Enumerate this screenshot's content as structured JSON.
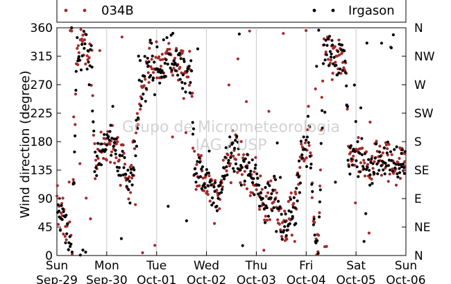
{
  "chart_data": {
    "type": "scatter",
    "title": "",
    "ylabel": "Wind direction (degree)",
    "xlabel": "",
    "ylim": [
      0,
      360
    ],
    "xlim": [
      "2013-09-29 00:00",
      "2013-10-06 00:00"
    ],
    "yticks": [
      0,
      45,
      90,
      135,
      180,
      225,
      270,
      315,
      360
    ],
    "compass_ticks": [
      "N",
      "NE",
      "E",
      "SE",
      "S",
      "SW",
      "W",
      "NW",
      "N"
    ],
    "x_ticks": [
      {
        "day": "Sun",
        "date": "Sep-29"
      },
      {
        "day": "Mon",
        "date": "Sep-30"
      },
      {
        "day": "Tue",
        "date": "Oct-01"
      },
      {
        "day": "Wed",
        "date": "Oct-02"
      },
      {
        "day": "Thu",
        "date": "Oct-03"
      },
      {
        "day": "Fri",
        "date": "Oct-04"
      },
      {
        "day": "Sat",
        "date": "Oct-05"
      },
      {
        "day": "Sun",
        "date": "Oct-06"
      }
    ],
    "grid": "vertical",
    "legend_position": "top",
    "watermark": [
      "Grupo de Micrometeorologia",
      "IAG / USP"
    ],
    "series": [
      {
        "name": "034B",
        "color": "#a52a2a"
      },
      {
        "name": "Irgason",
        "color": "#000000"
      }
    ],
    "trend_day_fraction_vs_degree": [
      [
        0.0,
        75
      ],
      [
        0.1,
        70
      ],
      [
        0.2,
        30
      ],
      [
        0.3,
        5
      ],
      [
        0.4,
        325
      ],
      [
        0.55,
        335
      ],
      [
        0.7,
        300
      ],
      [
        0.75,
        150
      ],
      [
        0.9,
        165
      ],
      [
        1.1,
        185
      ],
      [
        1.2,
        160
      ],
      [
        1.35,
        140
      ],
      [
        1.45,
        100
      ],
      [
        1.5,
        140
      ],
      [
        1.55,
        160
      ],
      [
        1.65,
        250
      ],
      [
        1.8,
        290
      ],
      [
        1.95,
        310
      ],
      [
        2.05,
        290
      ],
      [
        2.2,
        320
      ],
      [
        2.4,
        305
      ],
      [
        2.6,
        300
      ],
      [
        2.7,
        280
      ],
      [
        2.75,
        150
      ],
      [
        2.85,
        135
      ],
      [
        3.0,
        110
      ],
      [
        3.2,
        80
      ],
      [
        3.4,
        155
      ],
      [
        3.55,
        165
      ],
      [
        3.7,
        140
      ],
      [
        3.85,
        130
      ],
      [
        4.0,
        120
      ],
      [
        4.15,
        75
      ],
      [
        4.35,
        100
      ],
      [
        4.55,
        40
      ],
      [
        4.75,
        75
      ],
      [
        4.9,
        150
      ],
      [
        5.05,
        200
      ],
      [
        5.15,
        60
      ],
      [
        5.25,
        15
      ],
      [
        5.35,
        340
      ],
      [
        5.5,
        315
      ],
      [
        5.7,
        310
      ],
      [
        5.8,
        290
      ],
      [
        5.85,
        145
      ],
      [
        6.0,
        165
      ],
      [
        6.2,
        135
      ],
      [
        6.4,
        155
      ],
      [
        6.6,
        155
      ],
      [
        6.8,
        140
      ],
      [
        7.0,
        160
      ]
    ],
    "spread_degree": 30,
    "points_per_series": 520
  }
}
